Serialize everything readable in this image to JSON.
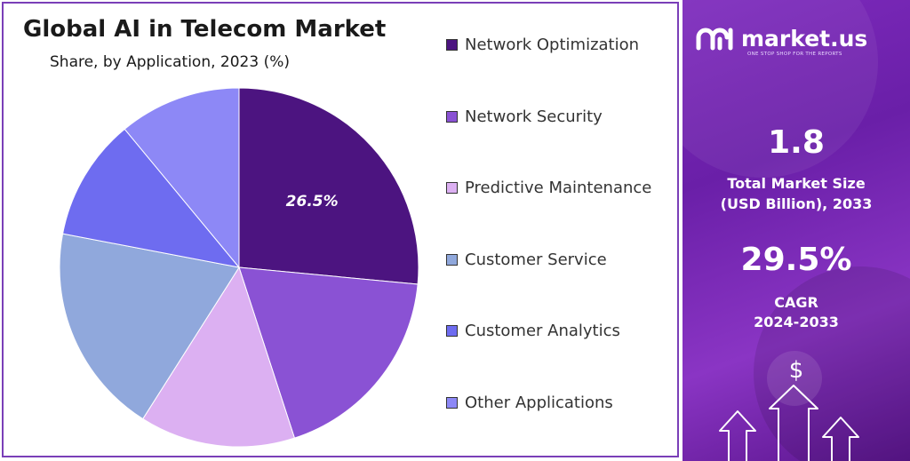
{
  "chart_data": {
    "type": "pie",
    "title": "Global AI in Telecom Market",
    "subtitle": "Share, by Application, 2023 (%)",
    "slices": [
      {
        "name": "Network Optimization",
        "value": 26.5,
        "color": "#4c1480",
        "data_label": "26.5%"
      },
      {
        "name": "Network Security",
        "value": 18.5,
        "color": "#8a52d4",
        "data_label": ""
      },
      {
        "name": "Predictive Maintenance",
        "value": 14.0,
        "color": "#dcb0f2",
        "data_label": ""
      },
      {
        "name": "Customer Service",
        "value": 19.0,
        "color": "#90a8dc",
        "data_label": ""
      },
      {
        "name": "Customer Analytics",
        "value": 11.0,
        "color": "#6e6cf0",
        "data_label": ""
      },
      {
        "name": "Other Applications",
        "value": 11.0,
        "color": "#8d88f6",
        "data_label": ""
      }
    ],
    "start_angle_deg": 0,
    "legend_position": "right"
  },
  "brand": {
    "name": "market.us",
    "tagline": "ONE STOP SHOP FOR THE REPORTS"
  },
  "stats": {
    "market_size_value": "1.8",
    "market_size_label_line1": "Total Market Size",
    "market_size_label_line2": "(USD Billion), 2033",
    "cagr_value": "29.5%",
    "cagr_label_line1": "CAGR",
    "cagr_label_line2": "2024-2033"
  },
  "icons": {
    "currency_symbol": "$"
  },
  "colors": {
    "panel_purple": "#7e2bbd",
    "border_purple": "#7a3fb8"
  }
}
